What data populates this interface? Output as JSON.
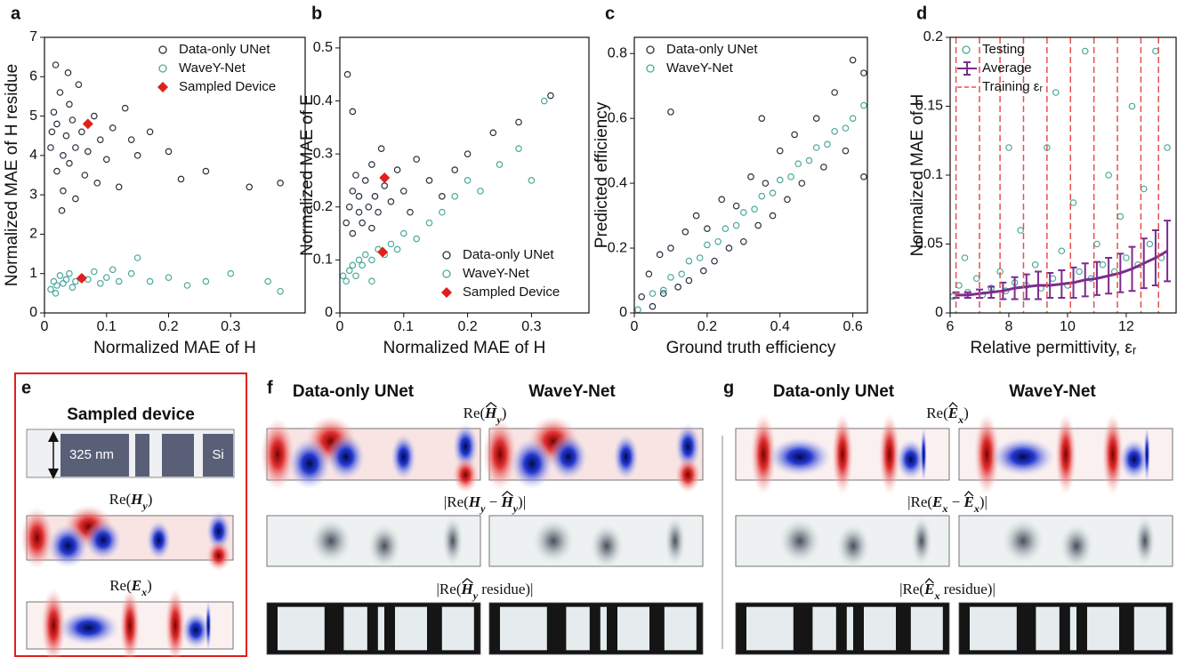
{
  "chart_data": [
    {
      "type": "scatter",
      "panel": "a",
      "ylabel": "Normalized MAE of H residue",
      "xlabel": "Normalized MAE of H",
      "xlim": [
        0,
        0.42
      ],
      "ylim": [
        0,
        7
      ],
      "xticks": [
        0,
        0.1,
        0.2,
        0.3
      ],
      "yticks": [
        0,
        1,
        2,
        3,
        4,
        5,
        6,
        7
      ],
      "legend": "upper right",
      "series": [
        {
          "name": "Data-only UNet",
          "color": "#26303d",
          "kind": "scatter",
          "marker": "circle",
          "x": [
            0.01,
            0.015,
            0.02,
            0.02,
            0.025,
            0.03,
            0.03,
            0.035,
            0.04,
            0.04,
            0.045,
            0.05,
            0.05,
            0.055,
            0.06,
            0.065,
            0.07,
            0.08,
            0.085,
            0.09,
            0.1,
            0.11,
            0.12,
            0.13,
            0.15,
            0.17,
            0.2,
            0.22,
            0.26,
            0.33,
            0.38,
            0.018,
            0.028,
            0.012,
            0.038,
            0.14
          ],
          "values": [
            4.2,
            5.1,
            3.6,
            4.8,
            5.6,
            4.0,
            3.1,
            4.5,
            5.3,
            3.8,
            4.9,
            4.2,
            2.9,
            5.8,
            4.6,
            3.5,
            4.1,
            5.0,
            3.3,
            4.4,
            3.9,
            4.7,
            3.2,
            5.2,
            4.0,
            4.6,
            4.1,
            3.4,
            3.6,
            3.2,
            3.3,
            6.3,
            2.6,
            4.6,
            6.1,
            4.4
          ]
        },
        {
          "name": "WaveY-Net",
          "color": "#4aa99b",
          "kind": "scatter",
          "marker": "circle",
          "x": [
            0.01,
            0.015,
            0.02,
            0.025,
            0.03,
            0.035,
            0.04,
            0.05,
            0.06,
            0.07,
            0.08,
            0.09,
            0.1,
            0.12,
            0.14,
            0.15,
            0.17,
            0.2,
            0.23,
            0.26,
            0.3,
            0.36,
            0.38,
            0.018,
            0.045,
            0.11
          ],
          "values": [
            0.6,
            0.8,
            0.7,
            0.95,
            0.75,
            0.85,
            1.0,
            0.8,
            0.9,
            0.85,
            1.05,
            0.75,
            0.9,
            0.8,
            1.0,
            1.4,
            0.8,
            0.9,
            0.7,
            0.8,
            1.0,
            0.8,
            0.55,
            0.5,
            0.65,
            1.1
          ]
        },
        {
          "name": "Sampled Device",
          "color": "#e0201b",
          "kind": "scatter",
          "marker": "diamond",
          "x": [
            0.07,
            0.06
          ],
          "values": [
            4.8,
            0.88
          ]
        }
      ]
    },
    {
      "type": "scatter",
      "panel": "b",
      "ylabel": "Normalized MAE of E",
      "xlabel": "Normalized MAE of H",
      "xlim": [
        0,
        0.39
      ],
      "ylim": [
        0,
        0.52
      ],
      "xticks": [
        0,
        0.1,
        0.2,
        0.3
      ],
      "yticks": [
        0,
        0.1,
        0.2,
        0.3,
        0.4,
        0.5
      ],
      "legend": "lower right",
      "series": [
        {
          "name": "Data-only UNet",
          "color": "#26303d",
          "kind": "scatter",
          "marker": "circle",
          "x": [
            0.01,
            0.015,
            0.02,
            0.02,
            0.025,
            0.03,
            0.03,
            0.035,
            0.04,
            0.045,
            0.05,
            0.05,
            0.055,
            0.06,
            0.07,
            0.08,
            0.09,
            0.1,
            0.11,
            0.12,
            0.14,
            0.16,
            0.18,
            0.2,
            0.24,
            0.28,
            0.33,
            0.02,
            0.012,
            0.065
          ],
          "values": [
            0.17,
            0.2,
            0.23,
            0.15,
            0.26,
            0.19,
            0.22,
            0.17,
            0.25,
            0.2,
            0.28,
            0.16,
            0.22,
            0.19,
            0.24,
            0.21,
            0.27,
            0.23,
            0.19,
            0.29,
            0.25,
            0.22,
            0.27,
            0.3,
            0.34,
            0.36,
            0.41,
            0.38,
            0.45,
            0.31
          ]
        },
        {
          "name": "WaveY-Net",
          "color": "#4aa99b",
          "kind": "scatter",
          "marker": "circle",
          "x": [
            0.005,
            0.01,
            0.015,
            0.02,
            0.025,
            0.03,
            0.035,
            0.04,
            0.05,
            0.06,
            0.07,
            0.08,
            0.09,
            0.1,
            0.12,
            0.14,
            0.16,
            0.18,
            0.2,
            0.22,
            0.25,
            0.28,
            0.3,
            0.32,
            0.05
          ],
          "values": [
            0.07,
            0.06,
            0.08,
            0.09,
            0.07,
            0.1,
            0.09,
            0.11,
            0.1,
            0.12,
            0.11,
            0.13,
            0.12,
            0.15,
            0.14,
            0.17,
            0.19,
            0.22,
            0.25,
            0.23,
            0.28,
            0.31,
            0.25,
            0.4,
            0.06
          ]
        },
        {
          "name": "Sampled Device",
          "color": "#e0201b",
          "kind": "scatter",
          "marker": "diamond",
          "x": [
            0.07,
            0.067
          ],
          "values": [
            0.255,
            0.115
          ]
        }
      ]
    },
    {
      "type": "scatter",
      "panel": "c",
      "ylabel": "Predicted efficiency",
      "xlabel": "Ground truth efficiency",
      "xlim": [
        0,
        0.64
      ],
      "ylim": [
        0,
        0.85
      ],
      "xticks": [
        0,
        0.2,
        0.4,
        0.6
      ],
      "yticks": [
        0,
        0.2,
        0.4,
        0.6,
        0.8
      ],
      "legend": "upper left",
      "series": [
        {
          "name": "Data-only UNet",
          "color": "#26303d",
          "kind": "scatter",
          "marker": "circle",
          "x": [
            0.02,
            0.04,
            0.05,
            0.07,
            0.08,
            0.1,
            0.12,
            0.14,
            0.15,
            0.17,
            0.19,
            0.2,
            0.22,
            0.24,
            0.26,
            0.28,
            0.3,
            0.32,
            0.34,
            0.36,
            0.38,
            0.4,
            0.42,
            0.44,
            0.46,
            0.5,
            0.52,
            0.55,
            0.58,
            0.6,
            0.63,
            0.63,
            0.1,
            0.35
          ],
          "values": [
            0.05,
            0.12,
            0.02,
            0.18,
            0.06,
            0.2,
            0.08,
            0.25,
            0.1,
            0.3,
            0.13,
            0.26,
            0.16,
            0.35,
            0.2,
            0.33,
            0.22,
            0.42,
            0.27,
            0.4,
            0.3,
            0.5,
            0.35,
            0.55,
            0.4,
            0.6,
            0.45,
            0.68,
            0.5,
            0.78,
            0.74,
            0.42,
            0.62,
            0.6
          ]
        },
        {
          "name": "WaveY-Net",
          "color": "#4aa99b",
          "kind": "scatter",
          "marker": "circle",
          "x": [
            0.01,
            0.05,
            0.08,
            0.1,
            0.13,
            0.15,
            0.18,
            0.2,
            0.23,
            0.25,
            0.28,
            0.3,
            0.33,
            0.35,
            0.38,
            0.4,
            0.43,
            0.45,
            0.48,
            0.5,
            0.53,
            0.55,
            0.58,
            0.6,
            0.63
          ],
          "values": [
            0.01,
            0.06,
            0.07,
            0.11,
            0.12,
            0.16,
            0.17,
            0.21,
            0.22,
            0.26,
            0.27,
            0.31,
            0.32,
            0.36,
            0.37,
            0.41,
            0.42,
            0.46,
            0.47,
            0.51,
            0.52,
            0.56,
            0.57,
            0.6,
            0.64
          ]
        }
      ]
    },
    {
      "type": "scatter",
      "panel": "d",
      "ylabel": "Normalized MAE of H",
      "xlabel": "Relative permittivity, εᵣ",
      "xlim": [
        6,
        13.7
      ],
      "ylim": [
        0,
        0.2
      ],
      "xticks": [
        6,
        8,
        10,
        12
      ],
      "yticks": [
        0,
        0.05,
        0.1,
        0.15,
        0.2
      ],
      "legend": "upper left",
      "series": [
        {
          "name": "Testing",
          "color": "#4aa99b",
          "kind": "scatter",
          "marker": "circle",
          "x": [
            6.1,
            6.3,
            6.6,
            6.9,
            7.1,
            7.4,
            7.7,
            7.9,
            8.2,
            8.4,
            8.6,
            8.9,
            9.1,
            9.3,
            9.5,
            9.8,
            10.0,
            10.2,
            10.4,
            10.6,
            10.8,
            11.0,
            11.2,
            11.4,
            11.6,
            11.8,
            12.0,
            12.2,
            12.4,
            12.6,
            12.8,
            13.0,
            13.2,
            13.4,
            8.0,
            6.5,
            9.6
          ],
          "values": [
            0.012,
            0.02,
            0.015,
            0.025,
            0.013,
            0.018,
            0.03,
            0.016,
            0.022,
            0.06,
            0.02,
            0.035,
            0.018,
            0.12,
            0.025,
            0.045,
            0.02,
            0.08,
            0.03,
            0.19,
            0.025,
            0.05,
            0.035,
            0.1,
            0.03,
            0.07,
            0.04,
            0.15,
            0.035,
            0.09,
            0.05,
            0.19,
            0.04,
            0.12,
            0.12,
            0.04,
            0.16
          ]
        },
        {
          "name": "Average",
          "color": "#7b2d8e",
          "kind": "errorbar",
          "x": [
            6.2,
            6.6,
            7.0,
            7.4,
            7.8,
            8.2,
            8.6,
            9.0,
            9.4,
            9.8,
            10.2,
            10.6,
            11.0,
            11.4,
            11.8,
            12.2,
            12.6,
            13.0,
            13.4
          ],
          "values": [
            0.013,
            0.013,
            0.014,
            0.015,
            0.016,
            0.018,
            0.019,
            0.02,
            0.02,
            0.021,
            0.022,
            0.024,
            0.025,
            0.027,
            0.029,
            0.032,
            0.036,
            0.04,
            0.045
          ],
          "errors": [
            0.002,
            0.002,
            0.003,
            0.004,
            0.006,
            0.008,
            0.009,
            0.01,
            0.009,
            0.01,
            0.011,
            0.012,
            0.012,
            0.013,
            0.014,
            0.016,
            0.018,
            0.02,
            0.022
          ]
        },
        {
          "name": "Training εᵣ",
          "color": "#e8504a",
          "kind": "vline",
          "x": [
            6.2,
            7.0,
            7.7,
            8.5,
            9.3,
            10.1,
            10.9,
            11.7,
            12.5,
            13.1
          ]
        }
      ]
    }
  ],
  "panels": {
    "e": {
      "label": "e",
      "title": "Sampled device",
      "height": "325 nm",
      "material": "Si",
      "captions": [
        [
          {
            "text": "Re("
          },
          {
            "symbol": "H",
            "sub": "y"
          },
          {
            "text": ")"
          }
        ],
        [
          {
            "text": "Re("
          },
          {
            "symbol": "E",
            "sub": "x"
          },
          {
            "text": ")"
          }
        ]
      ]
    },
    "f": {
      "label": "f",
      "columns": [
        "Data-only UNet",
        "WaveY-Net"
      ],
      "captions": [
        [
          {
            "text": "Re("
          },
          {
            "symbol": "H",
            "sub": "y",
            "hat": true
          },
          {
            "text": ")"
          }
        ],
        [
          {
            "text": "|Re("
          },
          {
            "symbol": "H",
            "sub": "y"
          },
          {
            "text": " − "
          },
          {
            "symbol": "H",
            "sub": "y",
            "hat": true
          },
          {
            "text": ")|"
          }
        ],
        [
          {
            "text": "|Re("
          },
          {
            "symbol": "H",
            "sub": "y",
            "hat": true
          },
          {
            "text": " residue)|"
          }
        ]
      ]
    },
    "g": {
      "label": "g",
      "columns": [
        "Data-only UNet",
        "WaveY-Net"
      ],
      "captions": [
        [
          {
            "text": "Re("
          },
          {
            "symbol": "E",
            "sub": "x",
            "hat": true
          },
          {
            "text": ")"
          }
        ],
        [
          {
            "text": "|Re("
          },
          {
            "symbol": "E",
            "sub": "x"
          },
          {
            "text": " − "
          },
          {
            "symbol": "E",
            "sub": "x",
            "hat": true
          },
          {
            "text": ")|"
          }
        ],
        [
          {
            "text": "|Re("
          },
          {
            "symbol": "E",
            "sub": "x",
            "hat": true
          },
          {
            "text": " residue)|"
          }
        ]
      ]
    }
  }
}
